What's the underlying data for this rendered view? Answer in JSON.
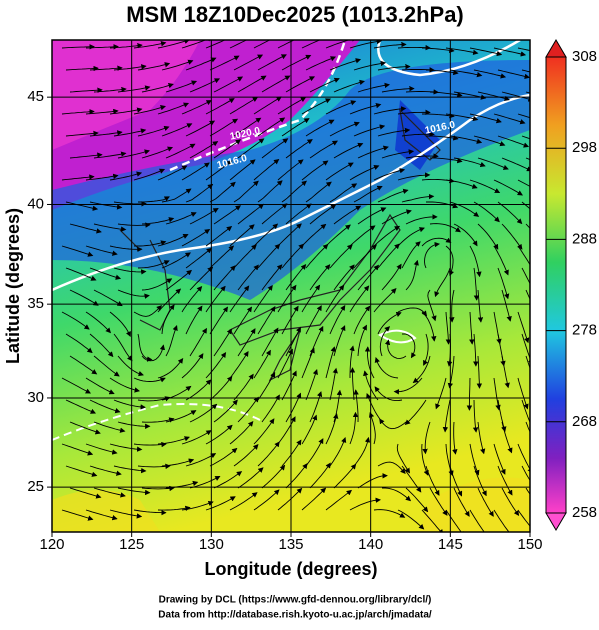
{
  "chart_data": {
    "type": "map",
    "title": "MSM 18Z10Dec2025 (1013.2hPa)",
    "projection": "mercator",
    "xlabel": "Longitude (degrees)",
    "ylabel": "Latitude  (degrees)",
    "xlim": [
      120,
      150
    ],
    "ylim": [
      22.4,
      47.5
    ],
    "xticks": [
      120,
      125,
      130,
      135,
      140,
      145,
      150
    ],
    "yticks": [
      25,
      30,
      35,
      40,
      45
    ],
    "grid": true,
    "colorbar": {
      "lim": [
        258,
        308
      ],
      "ticks": [
        258,
        268,
        278,
        288,
        298,
        308
      ]
    },
    "contour_labels": [
      "1020.0",
      "1016.0",
      "1016.0"
    ]
  },
  "footer": [
    "Drawing by DCL (https://www.gfd-dennou.org/library/dcl/)",
    "Data from http://database.rish.kyoto-u.ac.jp/arch/jmadata/"
  ]
}
